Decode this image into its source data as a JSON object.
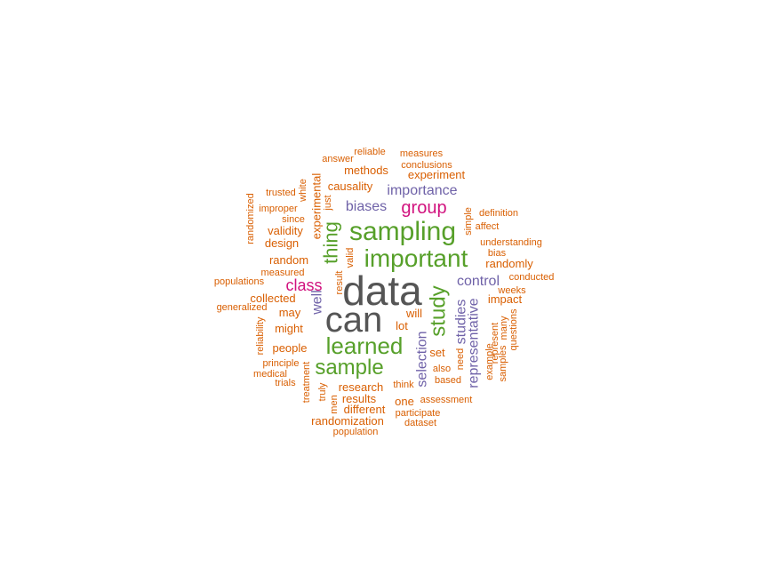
{
  "palette": {
    "large": "#555555",
    "green": "#57A02A",
    "purple": "#6F62A8",
    "magenta": "#D1127E",
    "orange": "#D95F02"
  },
  "words": [
    {
      "text": "data",
      "color": "large"
    },
    {
      "text": "can",
      "color": "large"
    },
    {
      "text": "sampling",
      "color": "green"
    },
    {
      "text": "important",
      "color": "green"
    },
    {
      "text": "learned",
      "color": "green"
    },
    {
      "text": "sample",
      "color": "green"
    },
    {
      "text": "study",
      "color": "green"
    },
    {
      "text": "thing",
      "color": "green"
    },
    {
      "text": "group",
      "color": "magenta"
    },
    {
      "text": "class",
      "color": "magenta"
    },
    {
      "text": "importance",
      "color": "purple"
    },
    {
      "text": "biases",
      "color": "purple"
    },
    {
      "text": "control",
      "color": "purple"
    },
    {
      "text": "studies",
      "color": "purple"
    },
    {
      "text": "representative",
      "color": "purple"
    },
    {
      "text": "selection",
      "color": "purple"
    },
    {
      "text": "well",
      "color": "purple"
    },
    {
      "text": "methods",
      "color": "orange"
    },
    {
      "text": "experiment",
      "color": "orange"
    },
    {
      "text": "causality",
      "color": "orange"
    },
    {
      "text": "validity",
      "color": "orange"
    },
    {
      "text": "design",
      "color": "orange"
    },
    {
      "text": "random",
      "color": "orange"
    },
    {
      "text": "randomly",
      "color": "orange"
    },
    {
      "text": "impact",
      "color": "orange"
    },
    {
      "text": "collected",
      "color": "orange"
    },
    {
      "text": "may",
      "color": "orange"
    },
    {
      "text": "might",
      "color": "orange"
    },
    {
      "text": "people",
      "color": "orange"
    },
    {
      "text": "will",
      "color": "orange"
    },
    {
      "text": "lot",
      "color": "orange"
    },
    {
      "text": "set",
      "color": "orange"
    },
    {
      "text": "research",
      "color": "orange"
    },
    {
      "text": "results",
      "color": "orange"
    },
    {
      "text": "different",
      "color": "orange"
    },
    {
      "text": "one",
      "color": "orange"
    },
    {
      "text": "randomization",
      "color": "orange"
    },
    {
      "text": "experimental",
      "color": "orange"
    },
    {
      "text": "reliable",
      "color": "orange"
    },
    {
      "text": "measures",
      "color": "orange"
    },
    {
      "text": "answer",
      "color": "orange"
    },
    {
      "text": "conclusions",
      "color": "orange"
    },
    {
      "text": "trusted",
      "color": "orange"
    },
    {
      "text": "white",
      "color": "orange"
    },
    {
      "text": "just",
      "color": "orange"
    },
    {
      "text": "improper",
      "color": "orange"
    },
    {
      "text": "since",
      "color": "orange"
    },
    {
      "text": "randomized",
      "color": "orange"
    },
    {
      "text": "definition",
      "color": "orange"
    },
    {
      "text": "simple",
      "color": "orange"
    },
    {
      "text": "affect",
      "color": "orange"
    },
    {
      "text": "understanding",
      "color": "orange"
    },
    {
      "text": "bias",
      "color": "orange"
    },
    {
      "text": "valid",
      "color": "orange"
    },
    {
      "text": "measured",
      "color": "orange"
    },
    {
      "text": "populations",
      "color": "orange"
    },
    {
      "text": "result",
      "color": "orange"
    },
    {
      "text": "conducted",
      "color": "orange"
    },
    {
      "text": "weeks",
      "color": "orange"
    },
    {
      "text": "generalized",
      "color": "orange"
    },
    {
      "text": "reliability",
      "color": "orange"
    },
    {
      "text": "principle",
      "color": "orange"
    },
    {
      "text": "medical",
      "color": "orange"
    },
    {
      "text": "trials",
      "color": "orange"
    },
    {
      "text": "treatment",
      "color": "orange"
    },
    {
      "text": "truly",
      "color": "orange"
    },
    {
      "text": "men",
      "color": "orange"
    },
    {
      "text": "think",
      "color": "orange"
    },
    {
      "text": "also",
      "color": "orange"
    },
    {
      "text": "based",
      "color": "orange"
    },
    {
      "text": "need",
      "color": "orange"
    },
    {
      "text": "example",
      "color": "orange"
    },
    {
      "text": "represent",
      "color": "orange"
    },
    {
      "text": "samples",
      "color": "orange"
    },
    {
      "text": "many",
      "color": "orange"
    },
    {
      "text": "questions",
      "color": "orange"
    },
    {
      "text": "assessment",
      "color": "orange"
    },
    {
      "text": "participate",
      "color": "orange"
    },
    {
      "text": "dataset",
      "color": "orange"
    },
    {
      "text": "population",
      "color": "orange"
    }
  ]
}
